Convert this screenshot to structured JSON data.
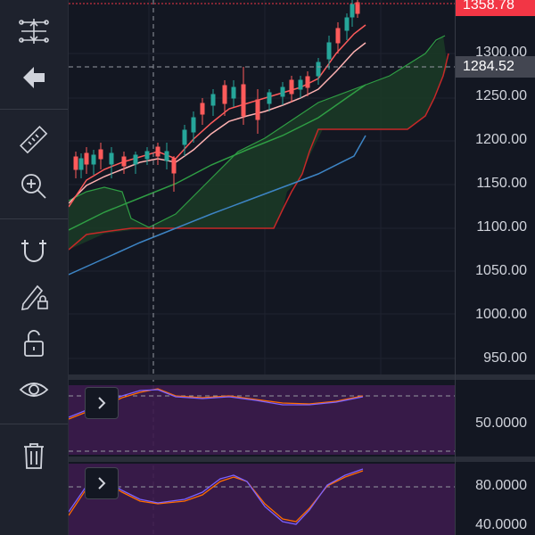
{
  "toolbar": {
    "tools": [
      {
        "name": "indicators-tool-icon"
      },
      {
        "name": "back-arrow-icon"
      },
      {
        "name": "ruler-icon"
      },
      {
        "name": "zoom-in-icon"
      },
      {
        "name": "magnet-icon"
      },
      {
        "name": "lock-drawings-icon"
      },
      {
        "name": "unlock-icon"
      },
      {
        "name": "eye-icon"
      },
      {
        "name": "trash-icon"
      }
    ]
  },
  "price_scale": {
    "labels": [
      "1300.00",
      "1250.00",
      "1200.00",
      "1150.00",
      "1100.00",
      "1050.00",
      "1000.00",
      "950.00"
    ],
    "last_price": "1358.78",
    "crosshair_price": "1284.52",
    "last_price_color": "#f23645",
    "crosshair_badge_color": "#434651"
  },
  "oscillator_1": {
    "labels": [
      "50.0000"
    ],
    "fill_color": "#3c1b4d"
  },
  "oscillator_2": {
    "labels": [
      "80.0000",
      "40.0000"
    ],
    "fill_color": "#3c1b4d"
  },
  "chart_data": {
    "type": "candlestick",
    "y_range": [
      920,
      1370
    ],
    "ichimoku_fill_color": "#1b3b26",
    "ma_colors": {
      "fast": "#ff5b5b",
      "mid": "#ffb2b2",
      "slow": "#2f9e44",
      "long": "#3d84c4"
    }
  }
}
